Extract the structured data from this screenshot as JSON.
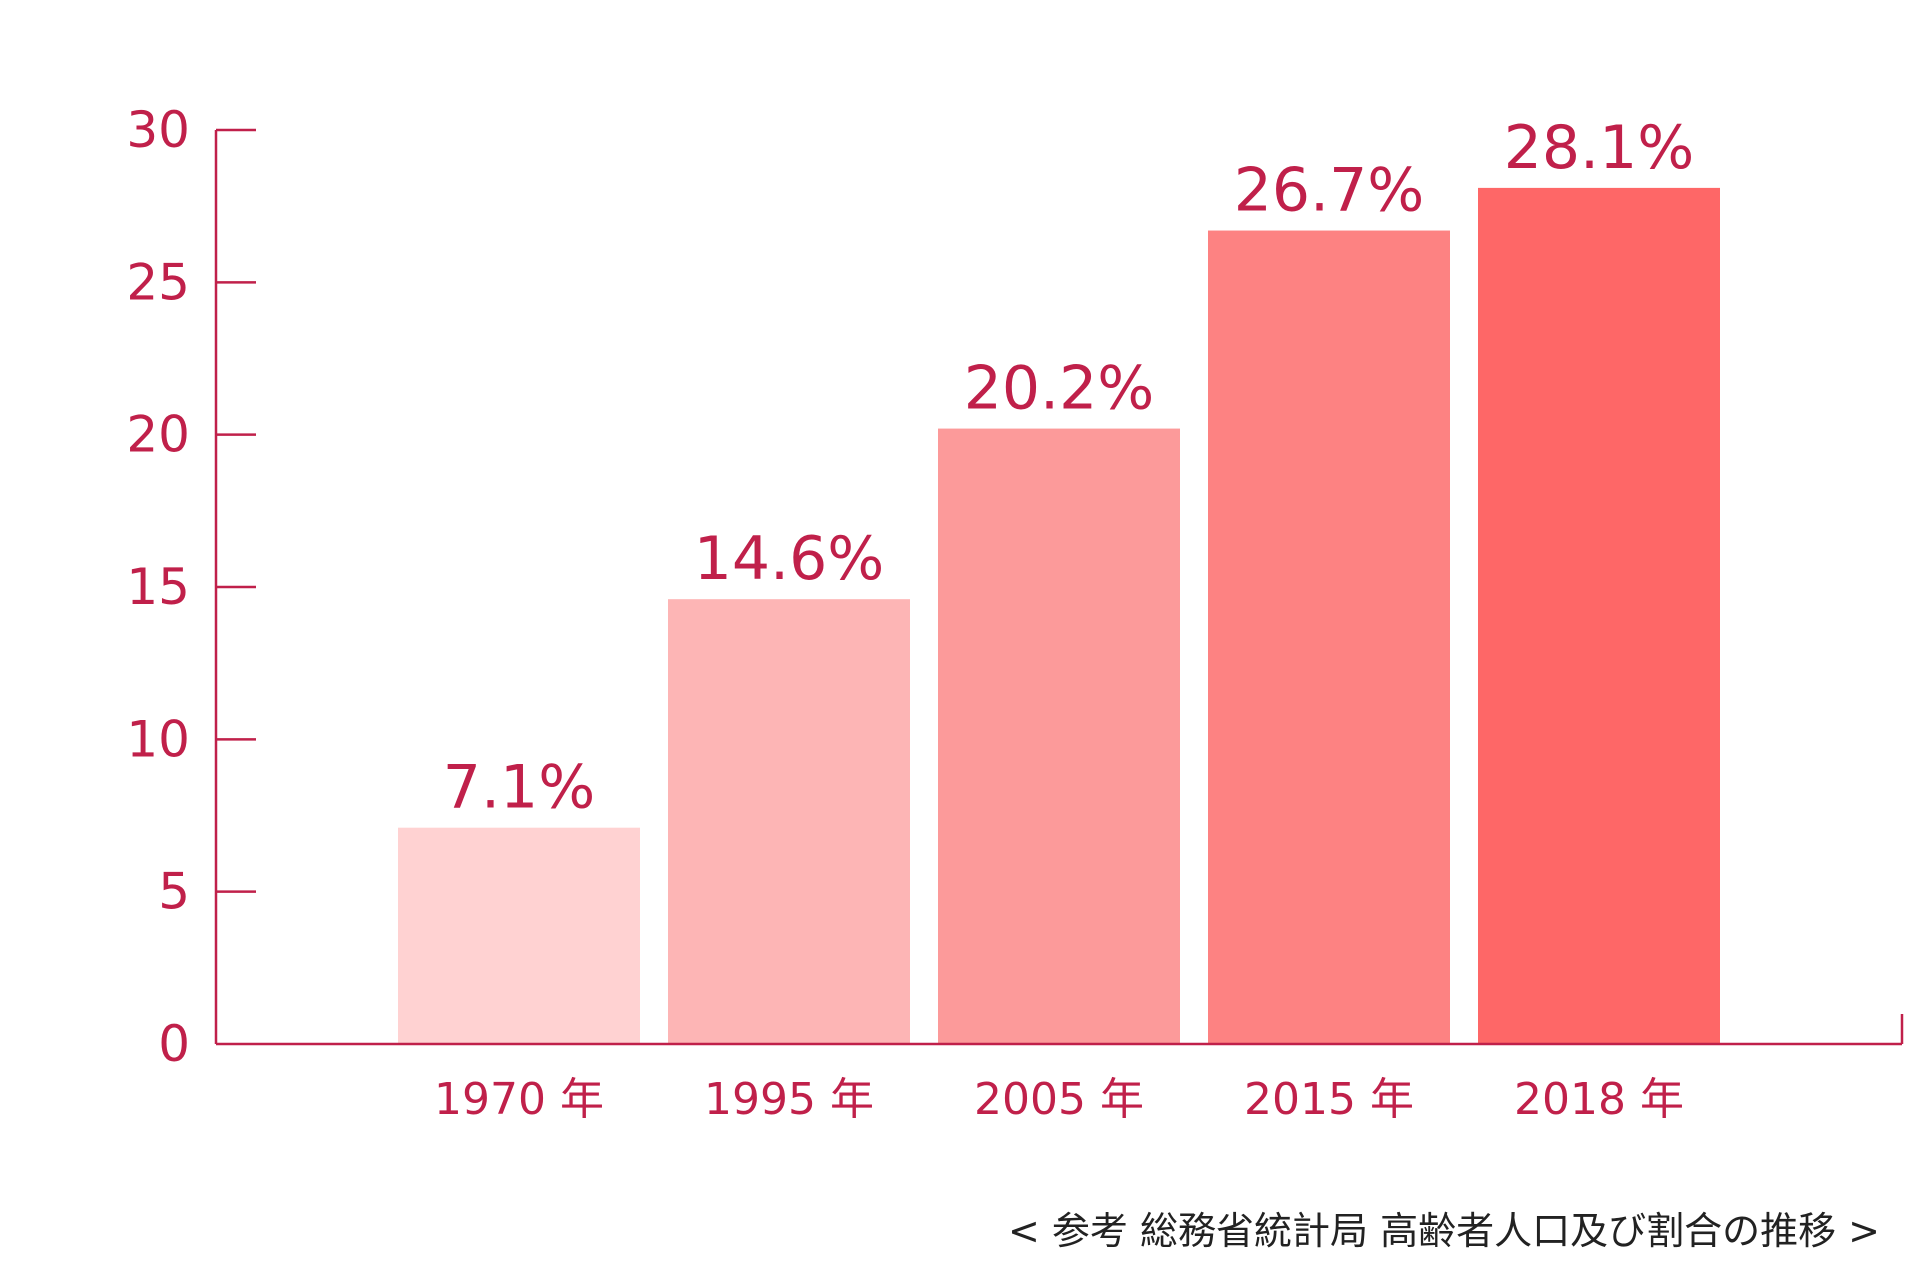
{
  "colors": {
    "axis": "#c0204a",
    "text": "#c0204a",
    "note": "#222222",
    "bars": [
      "#ffd2d2",
      "#fdb5b5",
      "#fc9a9a",
      "#fd8282",
      "#fe6767"
    ]
  },
  "chart_data": {
    "type": "bar",
    "categories": [
      "1970 年",
      "1995 年",
      "2005 年",
      "2015 年",
      "2018 年"
    ],
    "values": [
      7.1,
      14.6,
      20.2,
      26.7,
      28.1
    ],
    "data_labels": [
      "7.1%",
      "14.6%",
      "20.2%",
      "26.7%",
      "28.1%"
    ],
    "yticks": [
      0,
      5,
      10,
      15,
      20,
      25,
      30
    ],
    "ylim": [
      0,
      30
    ],
    "grid": false,
    "legend": "none"
  },
  "source_note": "< 参考 総務省統計局 高齢者人口及び割合の推移 >"
}
